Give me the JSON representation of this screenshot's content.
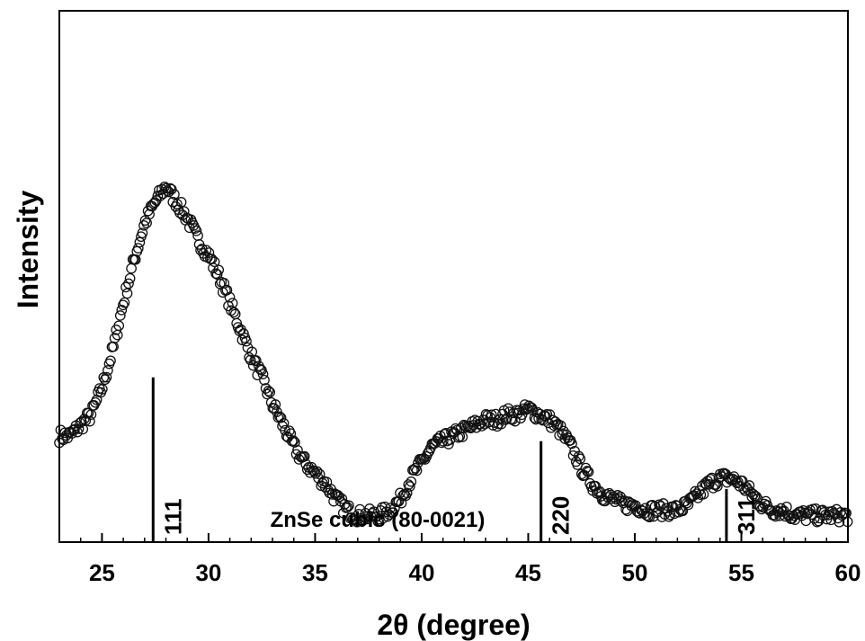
{
  "chart_data": {
    "type": "scatter",
    "title": "",
    "xlabel": "2θ (degree)",
    "ylabel": "Intensity",
    "xlim": [
      23,
      60
    ],
    "ylim": [
      0,
      100
    ],
    "y_ticks_shown": false,
    "grid": false,
    "legend": "none",
    "x_ticks": [
      25,
      30,
      35,
      40,
      45,
      50,
      55,
      60
    ],
    "x_tick_labels": [
      "25",
      "30",
      "35",
      "40",
      "45",
      "50",
      "55",
      "60"
    ],
    "annotation": "ZnSe cubic (80-0021)",
    "marker": "open-circle",
    "series": [
      {
        "x": [
          23.0,
          23.5,
          24.0,
          24.5,
          25.0,
          25.5,
          26.0,
          26.5,
          27.0,
          27.5,
          28.0,
          28.5,
          29.0,
          29.5,
          30.0,
          30.5,
          31.0,
          31.5,
          32.0,
          32.5,
          33.0,
          33.5,
          34.0,
          34.5,
          35.0,
          35.5,
          36.0,
          36.5,
          37.0,
          37.5,
          38.0,
          38.5,
          39.0,
          39.5,
          40.0,
          40.5,
          41.0,
          41.5,
          42.0,
          42.5,
          43.0,
          43.5,
          44.0,
          44.5,
          45.0,
          45.5,
          46.0,
          46.5,
          47.0,
          47.5,
          48.0,
          48.5,
          49.0,
          49.5,
          50.0,
          50.5,
          51.0,
          51.5,
          52.0,
          52.5,
          53.0,
          53.5,
          54.0,
          54.5,
          55.0,
          55.5,
          56.0,
          56.5,
          57.0,
          57.5,
          58.0,
          58.5,
          59.0,
          59.5,
          60.0
        ],
        "y": [
          20,
          20,
          22,
          24,
          29,
          36,
          45,
          53,
          60,
          64,
          67,
          64,
          61,
          57,
          54,
          50,
          45,
          40,
          35,
          31,
          26,
          22,
          18,
          15,
          13,
          11,
          8,
          6,
          5,
          5,
          5,
          6,
          8,
          12,
          15,
          18,
          19,
          20,
          21,
          22,
          23,
          23,
          24,
          24,
          25,
          24,
          23,
          21,
          18,
          14,
          11,
          9,
          8,
          7,
          7,
          6,
          6,
          6,
          6,
          7,
          9,
          11,
          12,
          12,
          11,
          9,
          7,
          6,
          6,
          5,
          5,
          5,
          5,
          5,
          5
        ]
      }
    ],
    "reference_lines": [
      {
        "x": 27.4,
        "height": 31,
        "label": "111"
      },
      {
        "x": 45.6,
        "height": 19,
        "label": "220"
      },
      {
        "x": 54.3,
        "height": 10,
        "label": "311"
      }
    ]
  }
}
